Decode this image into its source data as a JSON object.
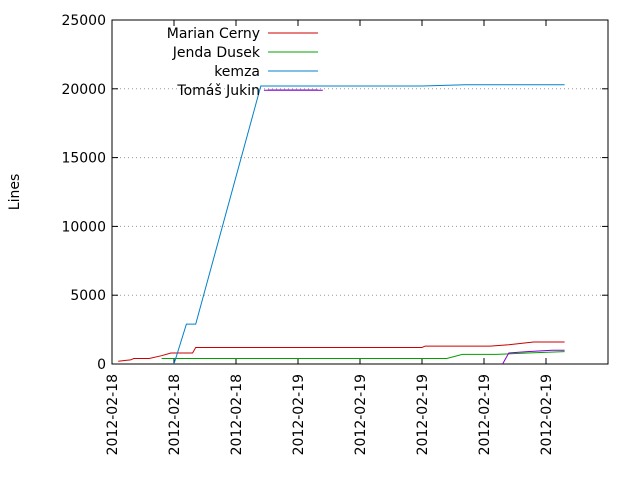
{
  "chart_data": {
    "type": "line",
    "title": "",
    "xlabel": "",
    "ylabel": "Lines",
    "ylim": [
      0,
      25000
    ],
    "yticks": [
      0,
      5000,
      10000,
      15000,
      20000,
      25000
    ],
    "xlim": [
      0,
      8
    ],
    "xtick_labels": [
      "2012-02-18",
      "2012-02-18",
      "2012-02-18",
      "2012-02-19",
      "2012-02-19",
      "2012-02-19",
      "2012-02-19",
      "2012-02-19"
    ],
    "grid": "horizontal dotted",
    "legend_position": "top-left",
    "series": [
      {
        "name": "Marian Cerny",
        "color": "#cc0000",
        "points": [
          [
            0.1,
            200
          ],
          [
            0.3,
            300
          ],
          [
            0.35,
            400
          ],
          [
            0.6,
            400
          ],
          [
            0.8,
            600
          ],
          [
            0.95,
            800
          ],
          [
            1.3,
            800
          ],
          [
            1.35,
            1200
          ],
          [
            3.0,
            1200
          ],
          [
            5.0,
            1200
          ],
          [
            5.05,
            1300
          ],
          [
            6.1,
            1300
          ],
          [
            6.4,
            1400
          ],
          [
            6.6,
            1500
          ],
          [
            6.8,
            1600
          ],
          [
            7.3,
            1600
          ]
        ]
      },
      {
        "name": "Jenda Dusek",
        "color": "#00a000",
        "points": [
          [
            0.8,
            400
          ],
          [
            3.0,
            400
          ],
          [
            5.4,
            400
          ],
          [
            5.65,
            700
          ],
          [
            6.2,
            700
          ],
          [
            6.7,
            800
          ],
          [
            7.3,
            900
          ]
        ]
      },
      {
        "name": "kemza",
        "color": "#0080cc",
        "points": [
          [
            1.0,
            0
          ],
          [
            1.2,
            2900
          ],
          [
            1.35,
            2900
          ],
          [
            2.4,
            20200
          ],
          [
            5.0,
            20200
          ],
          [
            5.7,
            20300
          ],
          [
            7.3,
            20300
          ]
        ]
      },
      {
        "name": "Tomáš Jukin",
        "color": "#8000cc",
        "points": [
          [
            2.45,
            19900
          ],
          [
            3.4,
            19900
          ],
          [
            6.3,
            0
          ],
          [
            6.4,
            800
          ],
          [
            6.7,
            900
          ],
          [
            7.1,
            1000
          ],
          [
            7.3,
            1000
          ]
        ]
      }
    ]
  }
}
